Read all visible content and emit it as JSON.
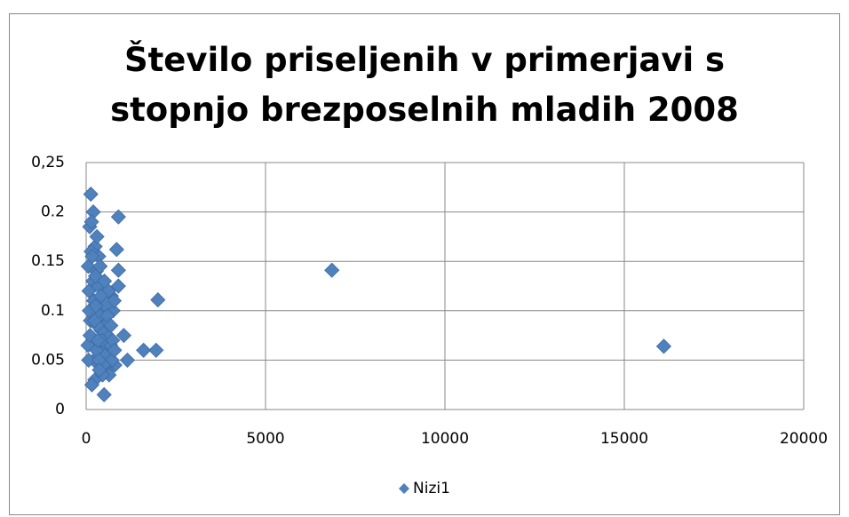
{
  "chart_data": {
    "type": "scatter",
    "title": "Število priseljenih v primerjavi s stopnjo brezposelnih mladih 2008",
    "series": [
      {
        "name": "Nizi1",
        "color": "#4f81bd",
        "x": [
          6850,
          16100,
          2000,
          1950,
          1600,
          1150,
          1050,
          900,
          850,
          900,
          900,
          500,
          130,
          200,
          100,
          60,
          80,
          150,
          250,
          300,
          350,
          400,
          450,
          500,
          550,
          600,
          650,
          700,
          750,
          800,
          120,
          180,
          220,
          280,
          320,
          380,
          420,
          480,
          520,
          580,
          620,
          680,
          720,
          780,
          50,
          90,
          140,
          190,
          240,
          290,
          340,
          390,
          440,
          490,
          540,
          590,
          640,
          690,
          740,
          790,
          70,
          110,
          160,
          210,
          260,
          310,
          360,
          410,
          460,
          510,
          170,
          230,
          270,
          330,
          370
        ],
        "values": [
          0.141,
          0.064,
          0.111,
          0.06,
          0.06,
          0.05,
          0.075,
          0.195,
          0.162,
          0.141,
          0.125,
          0.015,
          0.218,
          0.2,
          0.185,
          0.145,
          0.12,
          0.19,
          0.165,
          0.175,
          0.155,
          0.13,
          0.105,
          0.09,
          0.085,
          0.075,
          0.06,
          0.115,
          0.1,
          0.045,
          0.09,
          0.07,
          0.05,
          0.14,
          0.11,
          0.095,
          0.08,
          0.065,
          0.055,
          0.04,
          0.12,
          0.065,
          0.05,
          0.11,
          0.065,
          0.1,
          0.16,
          0.13,
          0.03,
          0.06,
          0.125,
          0.145,
          0.07,
          0.045,
          0.105,
          0.095,
          0.035,
          0.085,
          0.07,
          0.06,
          0.05,
          0.075,
          0.025,
          0.11,
          0.135,
          0.085,
          0.05,
          0.115,
          0.035,
          0.13,
          0.155,
          0.09,
          0.105,
          0.07,
          0.04
        ]
      }
    ],
    "xlim": [
      0,
      20000
    ],
    "xticks": [
      0,
      5000,
      10000,
      15000,
      20000
    ],
    "ylim": [
      0,
      0.25
    ],
    "yticks": [
      0,
      0.05,
      0.1,
      0.15,
      0.2,
      {
        "value": 0.25,
        "label": "0,25"
      }
    ],
    "grid": true,
    "legend": "bottom"
  }
}
